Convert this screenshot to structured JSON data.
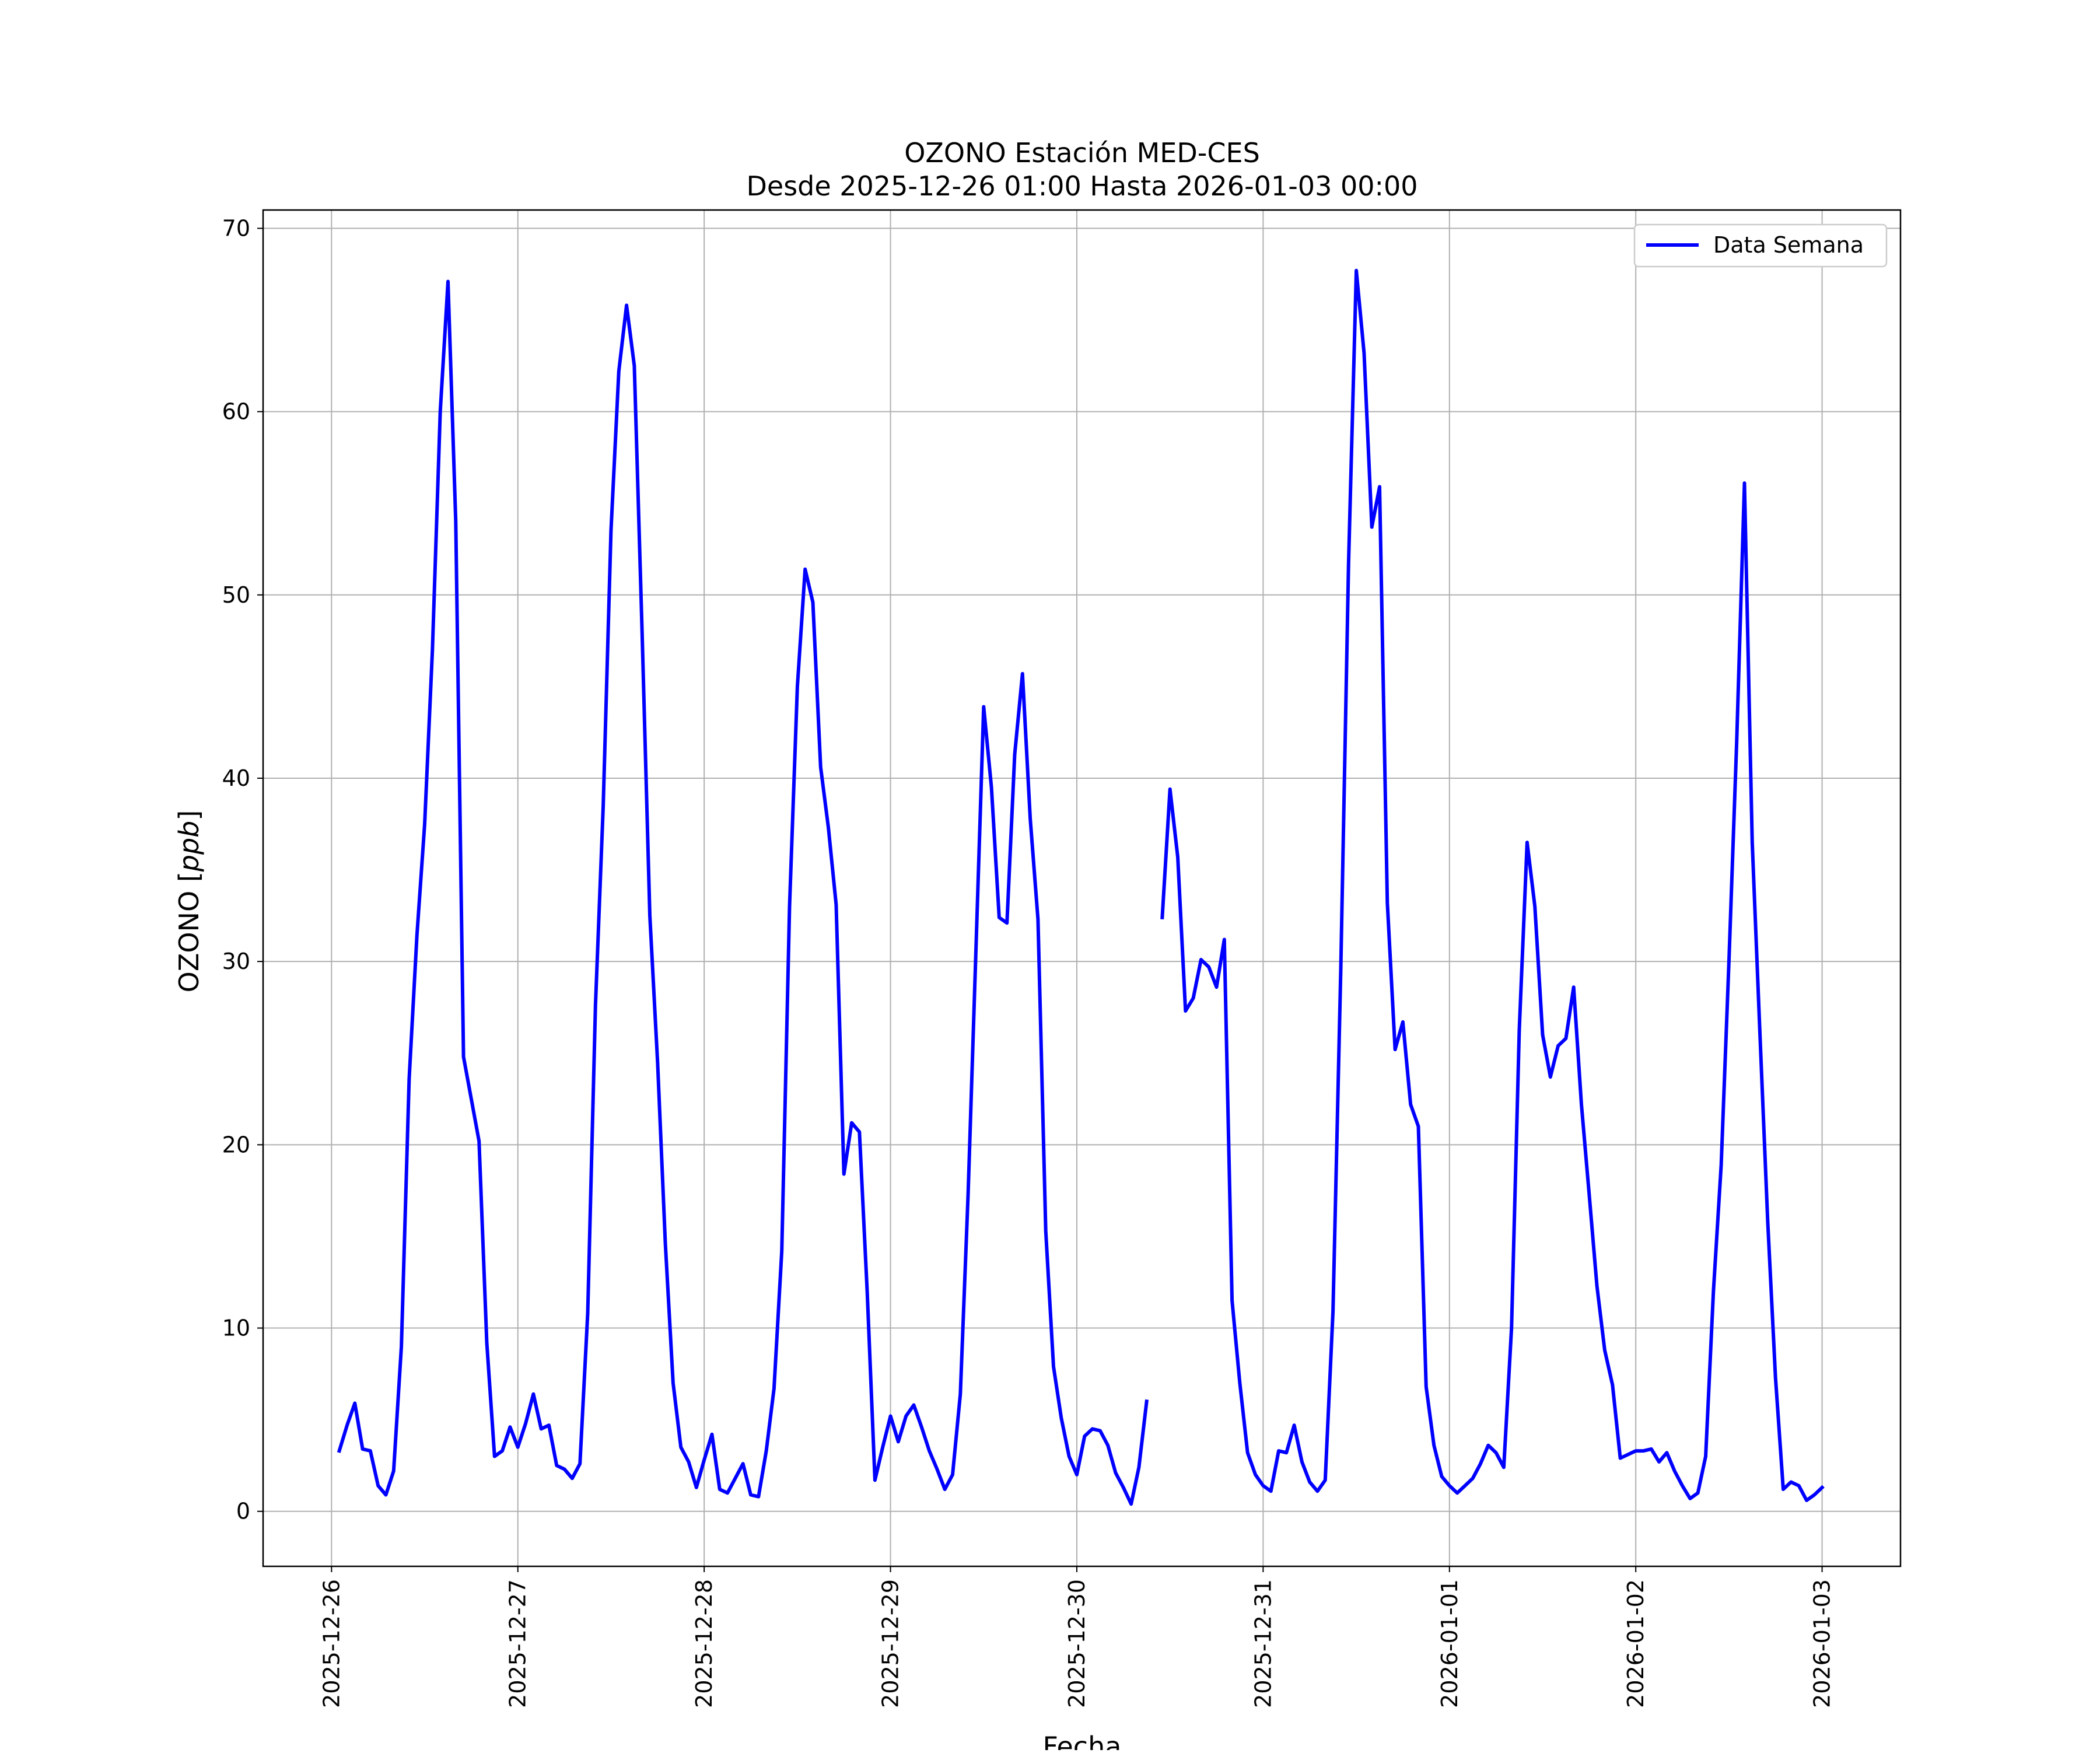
{
  "chart_data": {
    "type": "line",
    "title": "OZONO Estación MED-CES",
    "subtitle": "Desde 2025-12-26 01:00 Hasta 2026-01-03 00:00",
    "xlabel": "Fecha",
    "ylabel": "OZONO [ppb]",
    "ylabel_text": "OZONO [",
    "ylabel_unit": "ppb",
    "ylabel_close": "]",
    "xlim": [
      "2025-12-25 15:11",
      "2026-01-03 10:06"
    ],
    "ylim": [
      -3,
      71
    ],
    "grid": true,
    "legend_position": "top-right",
    "x_ticks": [
      "2025-12-26",
      "2025-12-27",
      "2025-12-28",
      "2025-12-29",
      "2025-12-30",
      "2025-12-31",
      "2026-01-01",
      "2026-01-02",
      "2026-01-03"
    ],
    "y_ticks": [
      0,
      10,
      20,
      30,
      40,
      50,
      60,
      70
    ],
    "series": [
      {
        "name": "Data Semana",
        "color": "#0000ff",
        "start": "2025-12-26 01:00",
        "interval_hours": 1,
        "values": [
          3.3,
          4.7,
          5.9,
          3.4,
          3.3,
          1.4,
          0.9,
          2.2,
          9.0,
          23.6,
          31.4,
          37.5,
          47.0,
          60.0,
          67.1,
          54.0,
          24.8,
          22.5,
          20.2,
          9.2,
          3.0,
          3.3,
          4.6,
          3.5,
          4.8,
          6.4,
          4.5,
          4.7,
          2.5,
          2.3,
          1.8,
          2.6,
          10.8,
          27.6,
          38.5,
          53.5,
          62.2,
          65.8,
          62.5,
          48.0,
          32.5,
          24.5,
          14.6,
          7.0,
          3.5,
          2.7,
          1.3,
          2.8,
          4.2,
          1.2,
          1.0,
          1.8,
          2.6,
          0.9,
          0.8,
          3.3,
          6.7,
          14.2,
          33.0,
          45.0,
          51.4,
          49.6,
          40.6,
          37.3,
          33.1,
          18.4,
          21.2,
          20.7,
          12.0,
          1.7,
          3.5,
          5.2,
          3.8,
          5.2,
          5.8,
          4.6,
          3.3,
          2.3,
          1.2,
          2.0,
          6.4,
          17.3,
          30.5,
          43.9,
          39.5,
          32.4,
          32.1,
          41.3,
          45.7,
          37.8,
          32.3,
          15.3,
          7.9,
          5.1,
          3.0,
          2.0,
          4.1,
          4.5,
          4.4,
          3.6,
          2.1,
          1.3,
          0.4,
          2.4,
          6.0,
          null,
          32.4,
          39.4,
          35.7,
          27.3,
          28.0,
          30.1,
          29.7,
          28.6,
          31.2,
          11.5,
          7.0,
          3.2,
          2.0,
          1.4,
          1.1,
          3.3,
          3.2,
          4.7,
          2.7,
          1.6,
          1.1,
          1.7,
          10.9,
          29.6,
          51.7,
          67.7,
          63.2,
          53.7,
          55.9,
          33.2,
          25.2,
          26.7,
          22.2,
          21.0,
          6.8,
          3.6,
          1.9,
          1.4,
          1.0,
          1.4,
          1.8,
          2.6,
          3.6,
          3.2,
          2.4,
          10.0,
          26.3,
          36.5,
          33.0,
          26.0,
          23.7,
          25.4,
          25.8,
          28.6,
          22.2,
          17.3,
          12.3,
          8.8,
          6.9,
          2.9,
          3.1,
          3.3,
          3.3,
          3.4,
          2.7,
          3.2,
          2.2,
          1.4,
          0.7,
          1.0,
          3.0,
          12.0,
          18.9,
          30.0,
          42.0,
          56.1,
          36.5,
          26.0,
          15.8,
          7.3,
          1.2,
          1.6,
          1.4,
          0.6,
          0.9,
          1.3
        ]
      }
    ]
  }
}
